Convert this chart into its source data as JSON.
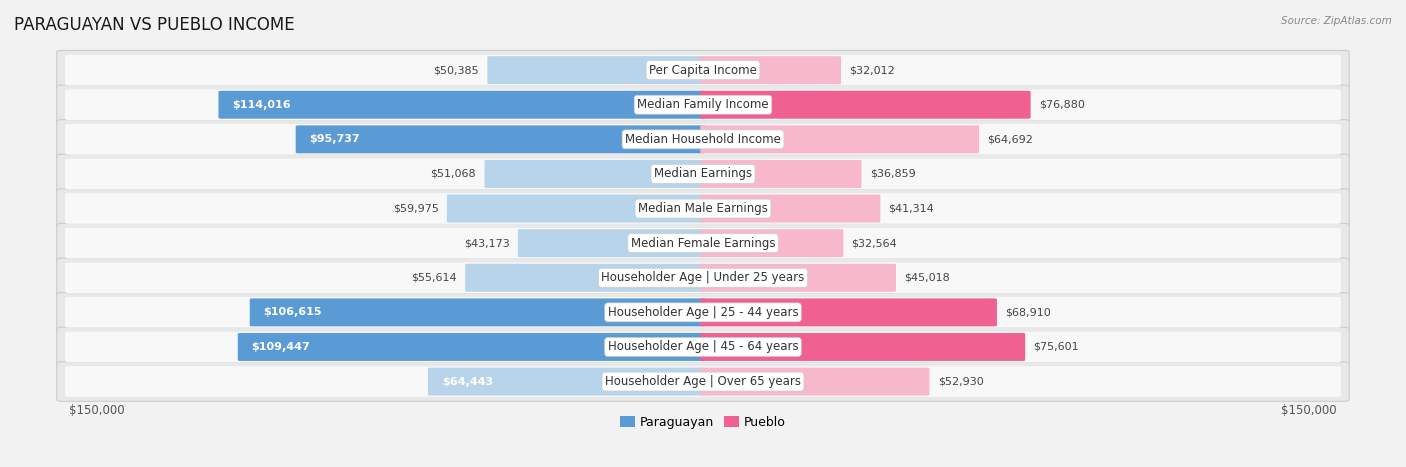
{
  "title": "PARAGUAYAN VS PUEBLO INCOME",
  "source": "Source: ZipAtlas.com",
  "categories": [
    "Per Capita Income",
    "Median Family Income",
    "Median Household Income",
    "Median Earnings",
    "Median Male Earnings",
    "Median Female Earnings",
    "Householder Age | Under 25 years",
    "Householder Age | 25 - 44 years",
    "Householder Age | 45 - 64 years",
    "Householder Age | Over 65 years"
  ],
  "paraguayan_values": [
    50385,
    114016,
    95737,
    51068,
    59975,
    43173,
    55614,
    106615,
    109447,
    64443
  ],
  "pueblo_values": [
    32012,
    76880,
    64692,
    36859,
    41314,
    32564,
    45018,
    68910,
    75601,
    52930
  ],
  "para_color_light": "#b8d4ea",
  "para_color_dark": "#5b9bd5",
  "pueblo_color_light": "#f8b8cc",
  "pueblo_color_dark": "#f06090",
  "background_color": "#f2f2f2",
  "row_outer_color": "#e8e8e8",
  "row_inner_color": "#f8f8f8",
  "max_value": 150000,
  "label_fontsize": 8.5,
  "title_fontsize": 12,
  "value_fontsize": 8.0,
  "axis_fontsize": 8.5,
  "legend_blue": "#5b9bd5",
  "legend_pink": "#f06090",
  "inside_label_threshold": 65000
}
